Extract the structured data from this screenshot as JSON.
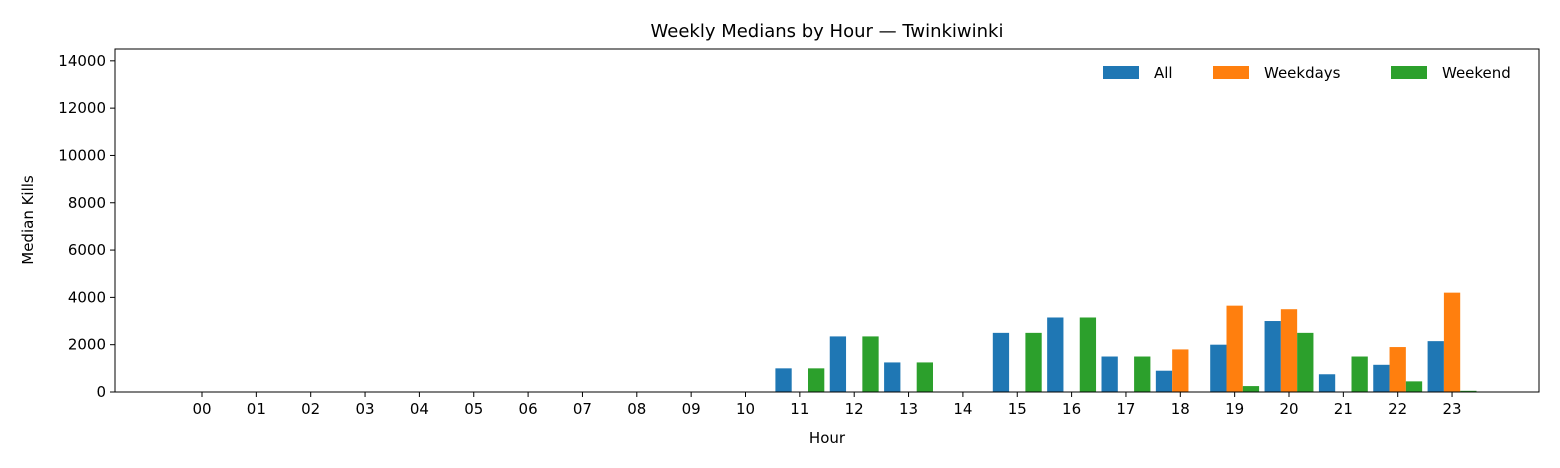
{
  "chart_data": {
    "type": "bar",
    "title": "Weekly Medians by Hour — Twinkiwinki",
    "xlabel": "Hour",
    "ylabel": "Median Kills",
    "ylim": [
      0,
      14500
    ],
    "yticks": [
      0,
      2000,
      4000,
      6000,
      8000,
      10000,
      12000,
      14000
    ],
    "grid": false,
    "legend_position": "top-right",
    "categories": [
      "00",
      "01",
      "02",
      "03",
      "04",
      "05",
      "06",
      "07",
      "08",
      "09",
      "10",
      "11",
      "12",
      "13",
      "14",
      "15",
      "16",
      "17",
      "18",
      "19",
      "20",
      "21",
      "22",
      "23"
    ],
    "series": [
      {
        "name": "All",
        "color": "#1f77b4",
        "values": [
          0,
          0,
          0,
          0,
          0,
          0,
          0,
          0,
          0,
          0,
          0,
          1000,
          2350,
          1250,
          0,
          2500,
          3150,
          1500,
          900,
          2000,
          3000,
          750,
          1150,
          2150
        ]
      },
      {
        "name": "Weekdays",
        "color": "#ff7f0e",
        "values": [
          0,
          0,
          0,
          0,
          0,
          0,
          0,
          0,
          0,
          0,
          0,
          0,
          0,
          0,
          0,
          0,
          0,
          0,
          1800,
          3650,
          3500,
          0,
          1900,
          4200
        ]
      },
      {
        "name": "Weekend",
        "color": "#2ca02c",
        "values": [
          0,
          0,
          0,
          0,
          0,
          0,
          0,
          0,
          0,
          0,
          0,
          1000,
          2350,
          1250,
          0,
          2500,
          3150,
          1500,
          0,
          250,
          2500,
          1500,
          450,
          50
        ]
      }
    ]
  }
}
